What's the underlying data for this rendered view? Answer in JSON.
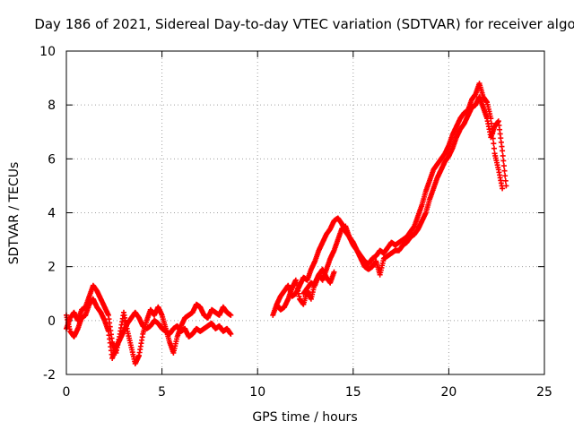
{
  "chart_data": {
    "type": "scatter",
    "title": "Day 186 of 2021, Sidereal Day-to-day VTEC variation (SDTVAR) for receiver algo",
    "xlabel": "GPS time / hours",
    "ylabel": "SDTVAR / TECUs",
    "xlim": [
      0,
      25
    ],
    "ylim": [
      -2,
      10
    ],
    "xticks": [
      0,
      5,
      10,
      15,
      20,
      25
    ],
    "yticks": [
      -2,
      0,
      2,
      4,
      6,
      8,
      10
    ],
    "grid": true,
    "marker": "+",
    "series_color": "#ff0000",
    "series": [
      {
        "name": "SDTVAR",
        "segments": [
          {
            "x": [
              0.0,
              0.2,
              0.4,
              0.6,
              0.8,
              1.0,
              1.2,
              1.4,
              1.6,
              1.8,
              2.0,
              2.2,
              2.4,
              2.6,
              2.8,
              3.0,
              3.2,
              3.4,
              3.6,
              3.8,
              4.0,
              4.2,
              4.4,
              4.6,
              4.8,
              5.0,
              5.2,
              5.4,
              5.6,
              5.8,
              6.0,
              6.2,
              6.4,
              6.6,
              6.8,
              7.0,
              7.2,
              7.4,
              7.6,
              7.8,
              8.0,
              8.2,
              8.4,
              8.6
            ],
            "y": [
              -0.3,
              0.1,
              0.3,
              0.0,
              0.4,
              0.5,
              0.9,
              1.3,
              1.1,
              0.8,
              0.5,
              0.2,
              -0.8,
              -1.2,
              -0.5,
              0.3,
              -0.4,
              -1.0,
              -1.6,
              -1.3,
              -0.5,
              0.0,
              0.4,
              0.2,
              0.5,
              0.2,
              -0.3,
              -0.8,
              -1.2,
              -0.6,
              -0.2,
              0.1,
              0.2,
              0.3,
              0.6,
              0.5,
              0.2,
              0.1,
              0.4,
              0.3,
              0.2,
              0.5,
              0.3,
              0.2
            ]
          },
          {
            "x": [
              0.0,
              0.2,
              0.4,
              0.6,
              0.8,
              1.0,
              1.2,
              1.4,
              1.6,
              1.8,
              2.0,
              2.2,
              2.4,
              2.6,
              2.8,
              3.0,
              3.2,
              3.4,
              3.6,
              3.8,
              4.0,
              4.2,
              4.4,
              4.6,
              4.8,
              5.0,
              5.2,
              5.4,
              5.6,
              5.8,
              6.0,
              6.2,
              6.4,
              6.6,
              6.8,
              7.0,
              7.2,
              7.4,
              7.6,
              7.8,
              8.0,
              8.2,
              8.4,
              8.6
            ],
            "y": [
              0.2,
              -0.4,
              -0.6,
              -0.3,
              0.1,
              0.2,
              0.6,
              0.8,
              0.5,
              0.3,
              0.0,
              -0.4,
              -1.4,
              -1.0,
              -0.7,
              -0.4,
              -0.1,
              0.1,
              0.3,
              0.1,
              -0.2,
              -0.3,
              -0.2,
              0.0,
              -0.1,
              -0.3,
              -0.4,
              -0.5,
              -0.3,
              -0.2,
              -0.4,
              -0.3,
              -0.6,
              -0.5,
              -0.3,
              -0.4,
              -0.3,
              -0.2,
              -0.1,
              -0.3,
              -0.2,
              -0.4,
              -0.3,
              -0.5
            ]
          },
          {
            "x": [
              10.8,
              11.0,
              11.2,
              11.4,
              11.6,
              11.8,
              12.0,
              12.2,
              12.4,
              12.6,
              12.8,
              13.0,
              13.2,
              13.4,
              13.6,
              13.8,
              14.0,
              14.2,
              14.4,
              14.6,
              14.8,
              15.0,
              15.2,
              15.4,
              15.6,
              15.8,
              16.0,
              16.2,
              16.4,
              16.6,
              16.8,
              17.0,
              17.2,
              17.4,
              17.6,
              17.8,
              18.0,
              18.2,
              18.4,
              18.6,
              18.8,
              19.0,
              19.2,
              19.4,
              19.6,
              19.8,
              20.0,
              20.2,
              20.4,
              20.6,
              20.8,
              21.0,
              21.2,
              21.4,
              21.6,
              21.8,
              22.0,
              22.2,
              22.4,
              22.6,
              22.8
            ],
            "y": [
              0.2,
              0.6,
              0.9,
              1.1,
              1.3,
              0.9,
              1.0,
              1.3,
              1.6,
              1.5,
              1.9,
              2.2,
              2.6,
              2.9,
              3.2,
              3.4,
              3.7,
              3.8,
              3.6,
              3.3,
              3.1,
              2.9,
              2.6,
              2.4,
              2.2,
              2.1,
              2.3,
              2.4,
              2.6,
              2.5,
              2.7,
              2.9,
              2.8,
              2.9,
              3.0,
              3.1,
              3.3,
              3.5,
              3.9,
              4.3,
              4.8,
              5.2,
              5.6,
              5.8,
              6.0,
              6.2,
              6.5,
              6.9,
              7.2,
              7.5,
              7.7,
              7.8,
              8.2,
              8.4,
              8.8,
              8.3,
              8.1,
              7.5,
              6.2,
              5.6,
              4.9
            ]
          },
          {
            "x": [
              11.0,
              11.2,
              11.4,
              11.6,
              11.8,
              12.0,
              12.2,
              12.4,
              12.6,
              12.8,
              13.0,
              13.2,
              13.4,
              13.6,
              13.8,
              14.0,
              14.2,
              14.4,
              14.6,
              14.8,
              15.0,
              15.2,
              15.4,
              15.6,
              15.8,
              16.0,
              16.2,
              16.4,
              16.6,
              16.8,
              17.0,
              17.2,
              17.4,
              17.6,
              17.8,
              18.0,
              18.2,
              18.4,
              18.6,
              18.8,
              19.0,
              19.2,
              19.4,
              19.6,
              19.8,
              20.0,
              20.2,
              20.4,
              20.6,
              20.8,
              21.0,
              21.2,
              21.4,
              21.6,
              21.8,
              22.0,
              22.2,
              22.4,
              22.6,
              22.8,
              23.0
            ],
            "y": [
              0.6,
              0.4,
              0.5,
              0.8,
              1.2,
              1.5,
              0.8,
              0.6,
              1.1,
              0.8,
              1.4,
              1.7,
              1.5,
              1.9,
              2.3,
              2.6,
              3.0,
              3.4,
              3.5,
              3.1,
              2.8,
              2.6,
              2.3,
              2.0,
              1.9,
              2.0,
              2.2,
              1.7,
              2.3,
              2.4,
              2.5,
              2.6,
              2.6,
              2.8,
              2.9,
              3.1,
              3.2,
              3.4,
              3.7,
              4.0,
              4.5,
              4.9,
              5.3,
              5.6,
              5.9,
              6.1,
              6.4,
              6.8,
              7.1,
              7.3,
              7.6,
              7.9,
              8.0,
              8.3,
              7.9,
              7.5,
              6.8,
              7.2,
              7.4,
              6.3,
              5.0
            ]
          },
          {
            "x": [
              12.4,
              12.6,
              12.8,
              13.0,
              13.2,
              13.4,
              13.6,
              13.8,
              14.0
            ],
            "y": [
              1.0,
              1.2,
              1.4,
              1.3,
              1.7,
              1.9,
              1.6,
              1.4,
              1.8
            ]
          }
        ]
      }
    ]
  }
}
